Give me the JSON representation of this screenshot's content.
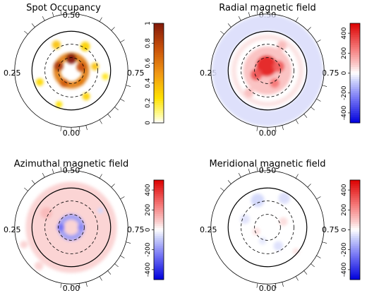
{
  "chart_data": [
    {
      "type": "heatmap",
      "title": "Spot Occupancy",
      "projection": "polar",
      "phase_labels": [
        "0.50",
        "0.25",
        "0.75",
        "0.00"
      ],
      "colorbar": {
        "colormap": "yellow-red",
        "range": [
          0,
          1
        ],
        "ticks": [
          "0",
          "0.2",
          "0.4",
          "0.6",
          "0.8",
          "1"
        ],
        "tick_values": [
          0,
          0.2,
          0.4,
          0.6,
          0.8,
          1
        ]
      },
      "features": [
        {
          "kind": "ring",
          "radius": 0.3,
          "width": 0.15,
          "value": 0.6
        },
        {
          "kind": "spot",
          "angle": 90,
          "radius": 0.25,
          "size": 0.11,
          "value": 1.0
        },
        {
          "kind": "spot",
          "angle": 160,
          "radius": 0.28,
          "size": 0.1,
          "value": 0.85
        },
        {
          "kind": "spot",
          "angle": 20,
          "radius": 0.22,
          "size": 0.1,
          "value": 0.75
        },
        {
          "kind": "spot",
          "angle": 240,
          "radius": 0.3,
          "size": 0.09,
          "value": 0.7
        },
        {
          "kind": "spot",
          "angle": 310,
          "radius": 0.3,
          "size": 0.08,
          "value": 0.6
        },
        {
          "kind": "spot",
          "angle": 60,
          "radius": 0.58,
          "size": 0.1,
          "value": 0.3
        },
        {
          "kind": "spot",
          "angle": 120,
          "radius": 0.62,
          "size": 0.09,
          "value": 0.35
        },
        {
          "kind": "spot",
          "angle": 200,
          "radius": 0.7,
          "size": 0.08,
          "value": 0.28
        },
        {
          "kind": "spot",
          "angle": 250,
          "radius": 0.75,
          "size": 0.07,
          "value": 0.25
        },
        {
          "kind": "spot",
          "angle": 300,
          "radius": 0.62,
          "size": 0.08,
          "value": 0.3
        },
        {
          "kind": "spot",
          "angle": 350,
          "radius": 0.72,
          "size": 0.07,
          "value": 0.22
        },
        {
          "kind": "spot",
          "angle": 10,
          "radius": 0.5,
          "size": 0.08,
          "value": 0.35
        }
      ]
    },
    {
      "type": "heatmap",
      "title": "Radial magnetic field",
      "projection": "polar",
      "phase_labels": [
        "0.50",
        "0.25",
        "0.75",
        "0.00"
      ],
      "colorbar": {
        "colormap": "blue-white-red",
        "range": [
          -500,
          500
        ],
        "ticks": [
          "-400",
          "-200",
          "0",
          "200",
          "400"
        ],
        "tick_values": [
          -400,
          -200,
          0,
          200,
          400
        ]
      },
      "features": [
        {
          "kind": "band",
          "r0": 0.82,
          "r1": 1.16,
          "value": -60
        },
        {
          "kind": "ring",
          "radius": 0.7,
          "width": 0.1,
          "value": 50
        },
        {
          "kind": "disk",
          "radius": 0.5,
          "value": 120
        },
        {
          "kind": "spot",
          "angle": 100,
          "radius": 0.1,
          "size": 0.22,
          "value": 420
        },
        {
          "kind": "spot",
          "angle": 200,
          "radius": 0.25,
          "size": 0.12,
          "value": 320
        },
        {
          "kind": "spot",
          "angle": 20,
          "radius": 0.25,
          "size": 0.12,
          "value": 300
        },
        {
          "kind": "spot",
          "angle": 300,
          "radius": 0.3,
          "size": 0.1,
          "value": 250
        },
        {
          "kind": "spot",
          "angle": 60,
          "radius": 0.6,
          "size": 0.1,
          "value": 120
        },
        {
          "kind": "spot",
          "angle": 230,
          "radius": 0.6,
          "size": 0.1,
          "value": 110
        }
      ]
    },
    {
      "type": "heatmap",
      "title": "Azimuthal magnetic field",
      "projection": "polar",
      "phase_labels": [
        "0.50",
        "0.25",
        "0.75",
        "0.00"
      ],
      "colorbar": {
        "colormap": "blue-white-red",
        "range": [
          -500,
          500
        ],
        "ticks": [
          "-400",
          "-200",
          "0",
          "200",
          "400"
        ],
        "tick_values": [
          -400,
          -200,
          0,
          200,
          400
        ]
      },
      "features": [
        {
          "kind": "disk",
          "radius": 0.95,
          "value": 80
        },
        {
          "kind": "ring",
          "radius": 0.22,
          "width": 0.12,
          "value": -180
        },
        {
          "kind": "spot",
          "angle": 180,
          "radius": 0.22,
          "size": 0.08,
          "value": -260
        },
        {
          "kind": "spot",
          "angle": 0,
          "radius": 0.2,
          "size": 0.07,
          "value": -220
        },
        {
          "kind": "spot",
          "angle": 150,
          "radius": 0.6,
          "size": 0.12,
          "value": 120
        },
        {
          "kind": "spot",
          "angle": 230,
          "radius": 1.05,
          "size": 0.09,
          "value": 70
        },
        {
          "kind": "spot",
          "angle": 200,
          "radius": 1.05,
          "size": 0.08,
          "value": 70
        },
        {
          "kind": "spot",
          "angle": 30,
          "radius": 0.7,
          "size": 0.06,
          "value": -70
        }
      ]
    },
    {
      "type": "heatmap",
      "title": "Meridional magnetic field",
      "projection": "polar",
      "phase_labels": [
        "0.50",
        "0.25",
        "0.75",
        "0.00"
      ],
      "colorbar": {
        "colormap": "blue-white-red",
        "range": [
          -500,
          500
        ],
        "ticks": [
          "-400",
          "-200",
          "0",
          "200",
          "400"
        ],
        "tick_values": [
          -400,
          -200,
          0,
          200,
          400
        ]
      },
      "features": [
        {
          "kind": "spot",
          "angle": 110,
          "radius": 0.6,
          "size": 0.14,
          "value": -70
        },
        {
          "kind": "spot",
          "angle": 60,
          "radius": 0.7,
          "size": 0.12,
          "value": -60
        },
        {
          "kind": "spot",
          "angle": 160,
          "radius": 0.5,
          "size": 0.1,
          "value": -50
        },
        {
          "kind": "spot",
          "angle": 300,
          "radius": 0.45,
          "size": 0.1,
          "value": -55
        },
        {
          "kind": "spot",
          "angle": 250,
          "radius": 0.3,
          "size": 0.08,
          "value": -40
        },
        {
          "kind": "spot",
          "angle": 20,
          "radius": 0.35,
          "size": 0.09,
          "value": 55
        },
        {
          "kind": "spot",
          "angle": 200,
          "radius": 0.25,
          "size": 0.08,
          "value": 50
        },
        {
          "kind": "spot",
          "angle": 320,
          "radius": 0.78,
          "size": 0.07,
          "value": 45
        }
      ]
    }
  ]
}
